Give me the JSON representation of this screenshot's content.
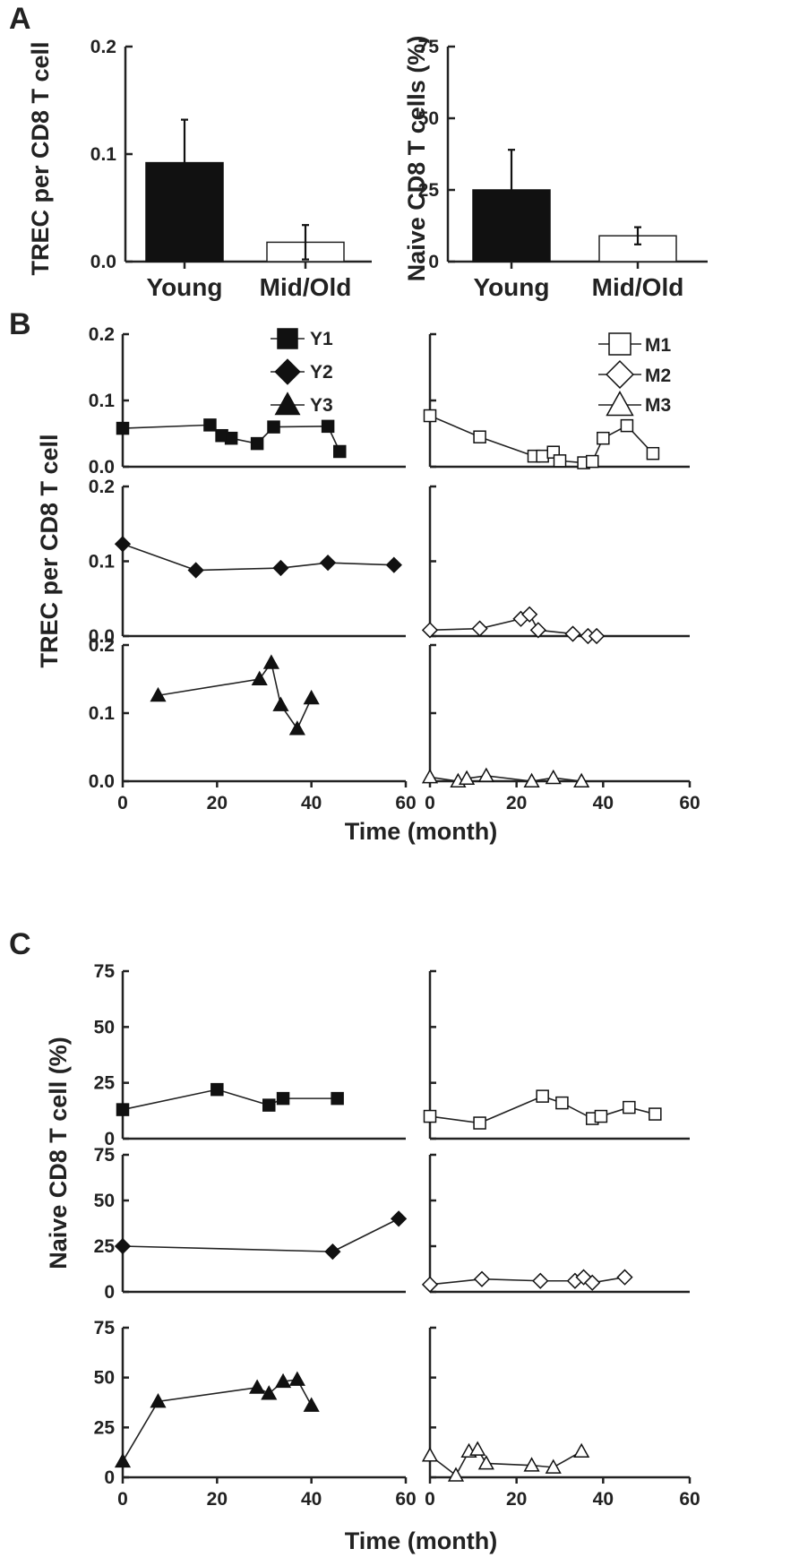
{
  "panel_labels": {
    "a": "A",
    "b": "B",
    "c": "C"
  },
  "titles": {
    "trec": "TREC per CD8 T cell",
    "naive_pct": "Naive CD8 T cells (%)",
    "naive_pct_c": "Naive CD8 T cell (%)",
    "time": "Time (month)"
  },
  "legend": {
    "young": [
      {
        "label": "Y1",
        "marker": "square",
        "fill": "#111111"
      },
      {
        "label": "Y2",
        "marker": "diamond",
        "fill": "#111111"
      },
      {
        "label": "Y3",
        "marker": "triangle",
        "fill": "#111111"
      }
    ],
    "mid_old": [
      {
        "label": "M1",
        "marker": "square",
        "fill": "#ffffff"
      },
      {
        "label": "M2",
        "marker": "diamond",
        "fill": "#ffffff"
      },
      {
        "label": "M3",
        "marker": "triangle",
        "fill": "#ffffff"
      }
    ]
  },
  "ticks": {
    "trec_a": [
      "0.0",
      "0.1",
      "0.2"
    ],
    "naive_a": [
      "0",
      "25",
      "50",
      "75"
    ],
    "trec_b": [
      "0.0",
      "0.1",
      "0.2"
    ],
    "naive_c": [
      "0",
      "25",
      "50",
      "75"
    ],
    "time": [
      "0",
      "20",
      "40",
      "60"
    ]
  },
  "chart_data": [
    {
      "type": "bar",
      "id": "A-left",
      "categories": [
        "Young",
        "Mid/Old"
      ],
      "values": [
        0.092,
        0.018
      ],
      "errors": [
        0.04,
        0.016
      ],
      "ylabel": "TREC per CD8 T cell",
      "ylim": [
        0,
        0.2
      ]
    },
    {
      "type": "bar",
      "id": "A-right",
      "categories": [
        "Young",
        "Mid/Old"
      ],
      "values": [
        25,
        9
      ],
      "errors": [
        14,
        3
      ],
      "ylabel": "Naive CD8 T cells (%)",
      "ylim": [
        0,
        75
      ]
    },
    {
      "type": "line",
      "id": "B",
      "xlabel": "Time (month)",
      "ylabel": "TREC per CD8 T cell",
      "xlim": [
        0,
        60
      ],
      "ylim": [
        0,
        0.2
      ],
      "series": [
        {
          "name": "Y1",
          "x": [
            0,
            18.5,
            21,
            23,
            28.5,
            32,
            43.5,
            46
          ],
          "y": [
            0.058,
            0.063,
            0.047,
            0.043,
            0.035,
            0.06,
            0.061,
            0.023
          ]
        },
        {
          "name": "Y2",
          "x": [
            0,
            15.5,
            33.5,
            43.5,
            57.5
          ],
          "y": [
            0.123,
            0.088,
            0.091,
            0.098,
            0.095
          ]
        },
        {
          "name": "Y3",
          "x": [
            7.5,
            29,
            31.5,
            33.5,
            37,
            40
          ],
          "y": [
            0.126,
            0.15,
            0.174,
            0.112,
            0.077,
            0.122
          ]
        },
        {
          "name": "M1",
          "x": [
            0,
            11.5,
            24,
            26,
            28.5,
            30,
            35.5,
            37.5,
            40,
            45.5,
            51.5
          ],
          "y": [
            0.077,
            0.045,
            0.016,
            0.016,
            0.022,
            0.009,
            0.006,
            0.008,
            0.043,
            0.062,
            0.02
          ]
        },
        {
          "name": "M2",
          "x": [
            0,
            11.5,
            21,
            23,
            25,
            33,
            36.5,
            38.5
          ],
          "y": [
            0.008,
            0.01,
            0.023,
            0.029,
            0.008,
            0.003,
            0.0,
            0.0
          ]
        },
        {
          "name": "M3",
          "x": [
            0,
            6.5,
            8.5,
            13,
            23.5,
            28.5,
            35
          ],
          "y": [
            0.006,
            0.0,
            0.004,
            0.008,
            0.0,
            0.005,
            0.0
          ]
        }
      ]
    },
    {
      "type": "line",
      "id": "C",
      "xlabel": "Time (month)",
      "ylabel": "Naive CD8 T cell (%)",
      "xlim": [
        0,
        60
      ],
      "ylim": [
        0,
        75
      ],
      "series": [
        {
          "name": "Y1",
          "x": [
            0,
            20,
            31,
            34,
            45.5
          ],
          "y": [
            13,
            22,
            15,
            18,
            18
          ]
        },
        {
          "name": "Y2",
          "x": [
            0,
            44.5,
            58.5
          ],
          "y": [
            25,
            22,
            40
          ]
        },
        {
          "name": "Y3",
          "x": [
            0,
            7.5,
            28.5,
            31,
            34,
            37,
            40
          ],
          "y": [
            8,
            38,
            45,
            42,
            48,
            49,
            36
          ]
        },
        {
          "name": "M1",
          "x": [
            0,
            11.5,
            26,
            30.5,
            37.5,
            39.5,
            46,
            52
          ],
          "y": [
            10,
            7,
            19,
            16,
            9,
            10,
            14,
            11
          ]
        },
        {
          "name": "M2",
          "x": [
            0,
            12,
            25.5,
            33.5,
            35.5,
            37.5,
            45
          ],
          "y": [
            4,
            7,
            6,
            6,
            8,
            5,
            8
          ]
        },
        {
          "name": "M3",
          "x": [
            0,
            6,
            9,
            11,
            13,
            23.5,
            28.5,
            35
          ],
          "y": [
            11,
            1,
            13,
            14,
            7,
            6,
            5,
            13
          ]
        }
      ]
    }
  ]
}
